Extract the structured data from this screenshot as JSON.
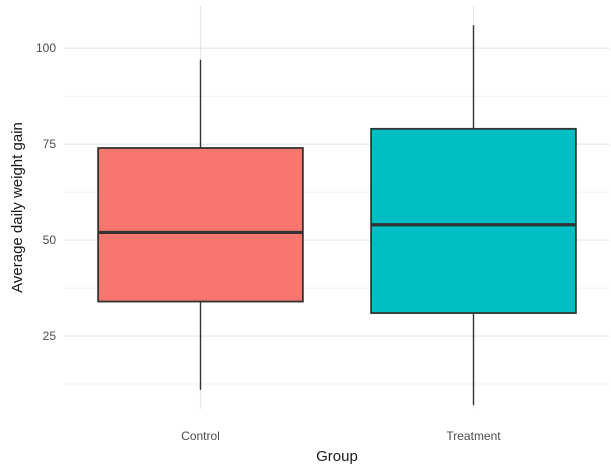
{
  "chart_data": {
    "type": "boxplot",
    "xlabel": "Group",
    "ylabel": "Average daily weight gain",
    "categories": [
      "Control",
      "Treatment"
    ],
    "boxes": [
      {
        "category": "Control",
        "min": 11,
        "q1": 34,
        "median": 52,
        "q3": 74,
        "max": 97,
        "color": "#F8766D"
      },
      {
        "category": "Treatment",
        "min": 7,
        "q1": 31,
        "median": 54,
        "q3": 79,
        "max": 106,
        "color": "#00BFC4"
      }
    ],
    "ylim": [
      6,
      111
    ],
    "yticks": [
      25,
      50,
      75,
      100
    ],
    "grid": true,
    "legend": "none"
  }
}
